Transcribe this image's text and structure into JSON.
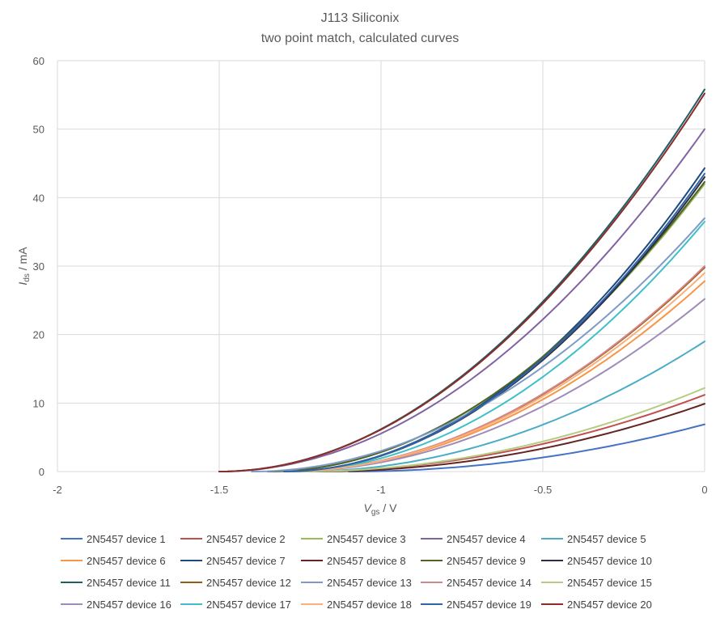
{
  "chart_data": {
    "type": "line",
    "title": "J113 Siliconix",
    "subtitle": "two point match, calculated curves",
    "xlabel": {
      "main": "V",
      "sub": "gs",
      "unit": " / V"
    },
    "ylabel": {
      "main": "I",
      "sub": "ds",
      "unit": " / mA"
    },
    "xlim": [
      -2,
      0
    ],
    "ylim": [
      0,
      60
    ],
    "xticks": [
      -2,
      -1.5,
      -1,
      -0.5,
      0
    ],
    "xtick_labels": [
      "-2",
      "-1.5",
      "-1",
      "-0.5",
      "0"
    ],
    "yticks": [
      0,
      10,
      20,
      30,
      40,
      50,
      60
    ],
    "ytick_labels": [
      "0",
      "10",
      "20",
      "30",
      "40",
      "50",
      "60"
    ],
    "grid": true,
    "legend_position": "bottom",
    "series": [
      {
        "name": "2N5457 device 1",
        "color": "#4472C4",
        "idss": 6.9,
        "vp": -1.1
      },
      {
        "name": "2N5457 device 2",
        "color": "#C0504D",
        "idss": 11.2,
        "vp": -1.25
      },
      {
        "name": "2N5457 device 3",
        "color": "#9BBB59",
        "idss": 42.0,
        "vp": -1.35
      },
      {
        "name": "2N5457 device 4",
        "color": "#8064A2",
        "idss": 50.0,
        "vp": -1.5
      },
      {
        "name": "2N5457 device 5",
        "color": "#4BACC6",
        "idss": 19.0,
        "vp": -1.25
      },
      {
        "name": "2N5457 device 6",
        "color": "#F79646",
        "idss": 27.8,
        "vp": -1.3
      },
      {
        "name": "2N5457 device 7",
        "color": "#1F497D",
        "idss": 44.3,
        "vp": -1.3
      },
      {
        "name": "2N5457 device 8",
        "color": "#632523",
        "idss": 9.9,
        "vp": -1.2
      },
      {
        "name": "2N5457 device 9",
        "color": "#4F6228",
        "idss": 42.3,
        "vp": -1.35
      },
      {
        "name": "2N5457 device 10",
        "color": "#2E2C45",
        "idss": 43.0,
        "vp": -1.3
      },
      {
        "name": "2N5457 device 11",
        "color": "#1D5E68",
        "idss": 55.8,
        "vp": -1.5
      },
      {
        "name": "2N5457 device 12",
        "color": "#9C5813",
        "idss": 29.8,
        "vp": -1.3
      },
      {
        "name": "2N5457 device 13",
        "color": "#7E9BC8",
        "idss": 37.0,
        "vp": -1.4
      },
      {
        "name": "2N5457 device 14",
        "color": "#D38786",
        "idss": 30.0,
        "vp": -1.3
      },
      {
        "name": "2N5457 device 15",
        "color": "#B5CC82",
        "idss": 12.2,
        "vp": -1.25
      },
      {
        "name": "2N5457 device 16",
        "color": "#A08BB8",
        "idss": 25.2,
        "vp": -1.3
      },
      {
        "name": "2N5457 device 17",
        "color": "#3FC0C8",
        "idss": 36.5,
        "vp": -1.3
      },
      {
        "name": "2N5457 device 18",
        "color": "#FAB07A",
        "idss": 29.0,
        "vp": -1.3
      },
      {
        "name": "2N5457 device 19",
        "color": "#2E64A8",
        "idss": 43.5,
        "vp": -1.3
      },
      {
        "name": "2N5457 device 20",
        "color": "#8E2B27",
        "idss": 55.2,
        "vp": -1.5
      }
    ]
  }
}
